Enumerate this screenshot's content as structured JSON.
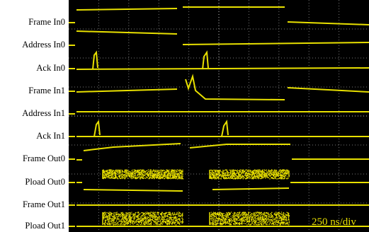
{
  "channels": [
    "Frame In0",
    "Address In0",
    "Ack In0",
    "Frame In1",
    "Address In1",
    "Ack In1",
    "Frame Out0",
    "Pload Out0",
    "Frame Out1",
    "Pload Out1"
  ],
  "timebase": "250 ns/div"
}
